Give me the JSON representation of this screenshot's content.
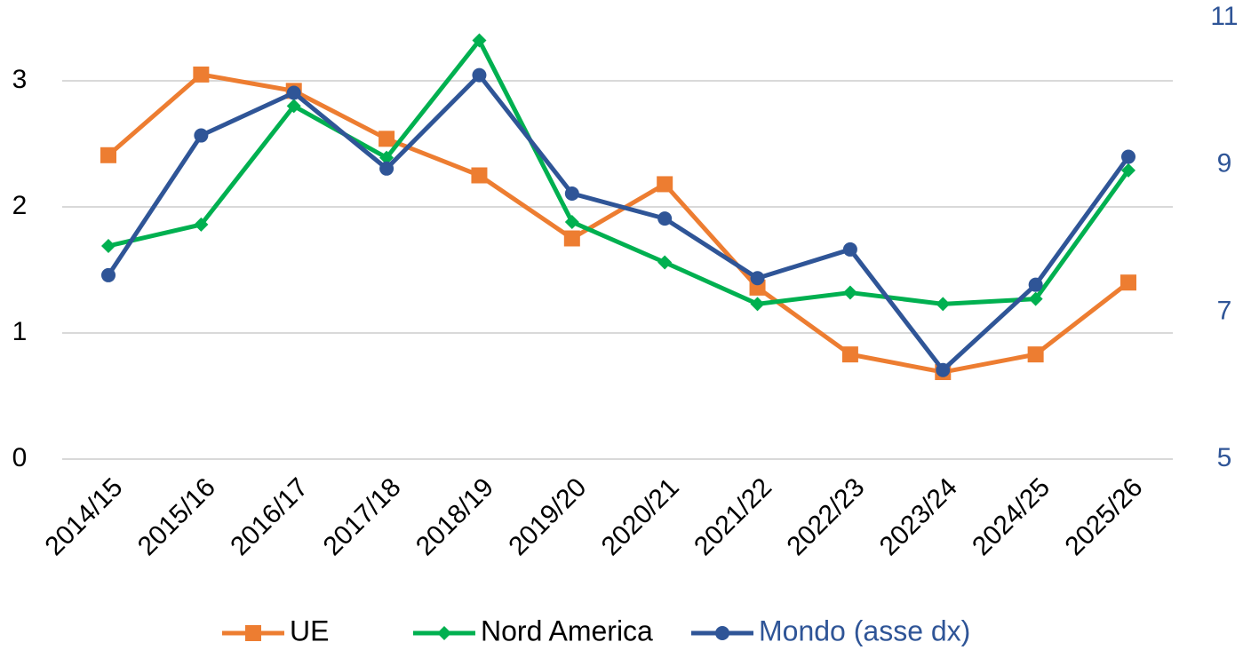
{
  "chart_data": {
    "type": "line",
    "categories": [
      "2014/15",
      "2015/16",
      "2016/17",
      "2017/18",
      "2018/19",
      "2019/20",
      "2020/21",
      "2021/22",
      "2022/23",
      "2023/24",
      "2024/25",
      "2025/26"
    ],
    "series": [
      {
        "name": "UE",
        "color": "#ed7d31",
        "marker": "square",
        "values": [
          2.41,
          3.05,
          2.92,
          2.54,
          2.25,
          1.75,
          2.18,
          1.36,
          0.83,
          0.69,
          0.83,
          1.4
        ]
      },
      {
        "name": "Nord America",
        "color": "#00b050",
        "marker": "diamond",
        "values": [
          1.69,
          1.86,
          2.8,
          2.39,
          3.32,
          1.88,
          1.56,
          1.23,
          1.32,
          1.23,
          1.27,
          2.29
        ]
      },
      {
        "name": "Mondo (asse dx)",
        "color": "#2f5597",
        "marker": "circle",
        "axis": "y2",
        "values": [
          7.5,
          9.4,
          9.98,
          8.95,
          10.22,
          8.61,
          8.27,
          7.46,
          7.85,
          6.21,
          7.37,
          9.11
        ]
      }
    ],
    "ylim": [
      0,
      3.5
    ],
    "yticks": [
      0,
      1,
      2,
      3
    ],
    "y2lim": [
      5,
      11
    ],
    "y2ticks": [
      5,
      7,
      9,
      11
    ],
    "y2_color": "#2f5597",
    "grid": true,
    "legend": "bottom"
  }
}
